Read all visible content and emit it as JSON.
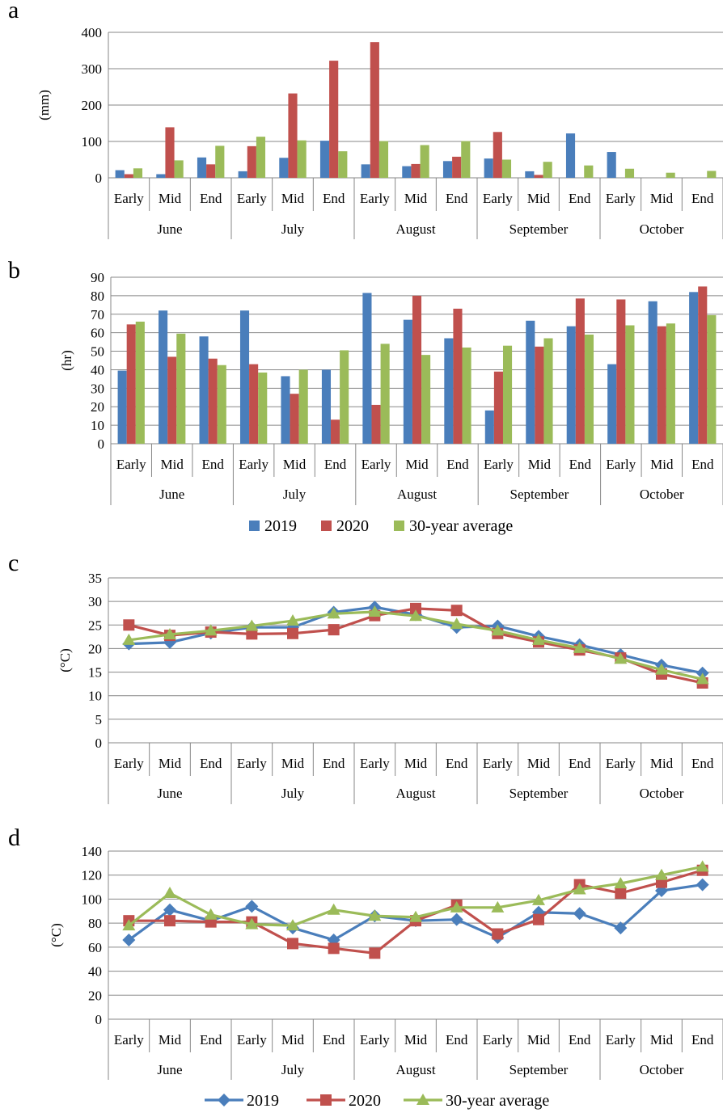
{
  "colors": {
    "s2019": "#4a7ebb",
    "s2020": "#c0504d",
    "avg": "#9bbb59",
    "grid": "#878787"
  },
  "months": [
    "June",
    "July",
    "August",
    "September",
    "October"
  ],
  "periods": [
    "Early",
    "Mid",
    "End"
  ],
  "legend": [
    "2019",
    "2020",
    "30-year average"
  ],
  "chart_data": [
    {
      "panel": "a",
      "type": "bar",
      "ylabel": "(mm)",
      "ylim": [
        0,
        400
      ],
      "yticks": [
        0,
        100,
        200,
        300,
        400
      ],
      "grid": true,
      "series": [
        {
          "name": "2019",
          "values": [
            21,
            10,
            56,
            18,
            55,
            102,
            37,
            32,
            46,
            53,
            18,
            122,
            71,
            0,
            0
          ]
        },
        {
          "name": "2020",
          "values": [
            10,
            139,
            37,
            87,
            232,
            322,
            373,
            38,
            58,
            126,
            8,
            0,
            0,
            0,
            0
          ]
        },
        {
          "name": "30-year average",
          "values": [
            26,
            48,
            88,
            113,
            103,
            73,
            101,
            90,
            101,
            50,
            44,
            34,
            25,
            14,
            19
          ]
        }
      ]
    },
    {
      "panel": "b",
      "type": "bar",
      "ylabel": "(hr)",
      "ylim": [
        0,
        90
      ],
      "yticks": [
        0,
        10,
        20,
        30,
        40,
        50,
        60,
        70,
        80,
        90
      ],
      "grid": true,
      "legend_position": "bottom",
      "series": [
        {
          "name": "2019",
          "values": [
            39.5,
            72,
            58,
            72,
            36.5,
            40,
            81.5,
            67,
            57,
            18,
            66.5,
            63.5,
            43,
            77,
            82
          ]
        },
        {
          "name": "2020",
          "values": [
            64.5,
            47,
            46,
            43,
            27,
            13,
            21,
            80,
            73,
            39,
            52.5,
            78.5,
            78,
            63.5,
            85
          ]
        },
        {
          "name": "30-year average",
          "values": [
            66,
            59.5,
            42.5,
            38.5,
            40,
            50.5,
            54,
            48,
            52,
            53,
            57,
            59,
            64,
            65,
            69.5
          ]
        }
      ]
    },
    {
      "panel": "c",
      "type": "line",
      "ylabel": "(°C)",
      "ylim": [
        0,
        35
      ],
      "yticks": [
        0,
        5,
        10,
        15,
        20,
        25,
        30,
        35
      ],
      "grid": true,
      "series": [
        {
          "name": "2019",
          "marker": "diamond",
          "values": [
            21.0,
            21.3,
            23.3,
            24.5,
            24.5,
            27.7,
            28.8,
            27.2,
            24.5,
            24.8,
            22.6,
            20.8,
            18.7,
            16.5,
            14.8
          ]
        },
        {
          "name": "2020",
          "marker": "square",
          "values": [
            25.0,
            22.8,
            23.5,
            23.1,
            23.2,
            24.0,
            27.0,
            28.5,
            28.1,
            23.2,
            21.4,
            19.7,
            18.0,
            14.6,
            12.7
          ]
        },
        {
          "name": "30-year average",
          "marker": "triangle",
          "values": [
            21.8,
            23.0,
            23.8,
            24.8,
            25.9,
            27.4,
            27.8,
            26.9,
            25.2,
            23.8,
            21.8,
            20.1,
            17.8,
            15.5,
            13.5
          ]
        }
      ]
    },
    {
      "panel": "d",
      "type": "line",
      "ylabel": "(°C)",
      "ylim": [
        0,
        140
      ],
      "yticks": [
        0,
        20,
        40,
        60,
        80,
        100,
        120,
        140
      ],
      "grid": true,
      "legend_position": "bottom",
      "series": [
        {
          "name": "2019",
          "marker": "diamond",
          "values": [
            66,
            91,
            82,
            94,
            76,
            66,
            86,
            82,
            83,
            68,
            89,
            88,
            76,
            107,
            112
          ]
        },
        {
          "name": "2020",
          "marker": "square",
          "values": [
            82,
            82,
            81,
            81,
            63,
            59,
            55,
            82,
            95,
            71,
            83,
            112,
            105,
            114,
            124
          ]
        },
        {
          "name": "30-year average",
          "marker": "triangle",
          "values": [
            78,
            105,
            87,
            79,
            78,
            91,
            86,
            85,
            93,
            93,
            99,
            108,
            113,
            120,
            127
          ]
        }
      ]
    }
  ]
}
